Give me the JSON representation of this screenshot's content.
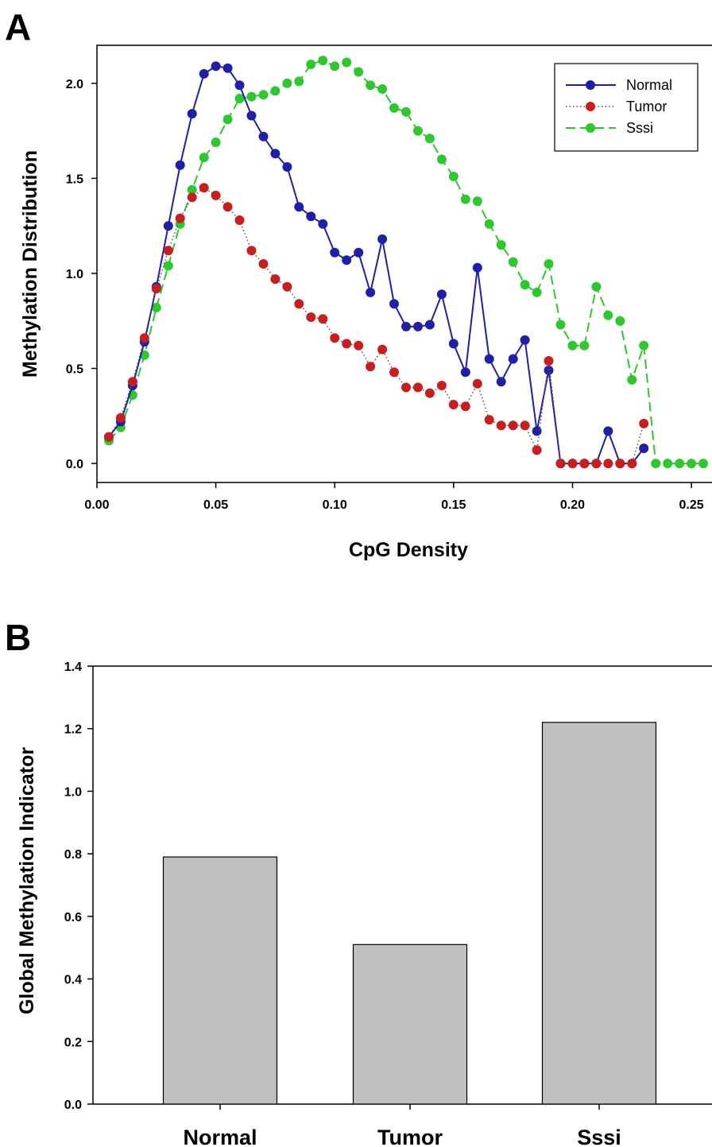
{
  "chart_data": [
    {
      "panel": "A",
      "type": "line",
      "xlabel": "CpG Density",
      "ylabel": "Methylation Distribution",
      "xlim": [
        0,
        0.26
      ],
      "ylim": [
        -0.1,
        2.2
      ],
      "xticks": [
        "0.00",
        "0.05",
        "0.10",
        "0.15",
        "0.20",
        "0.25"
      ],
      "yticks": [
        "0.0",
        "0.5",
        "1.0",
        "1.5",
        "2.0"
      ],
      "grid": false,
      "legend_position": "top-right",
      "x": [
        0.005,
        0.01,
        0.015,
        0.02,
        0.025,
        0.03,
        0.035,
        0.04,
        0.045,
        0.05,
        0.055,
        0.06,
        0.065,
        0.07,
        0.075,
        0.08,
        0.085,
        0.09,
        0.095,
        0.1,
        0.105,
        0.11,
        0.115,
        0.12,
        0.125,
        0.13,
        0.135,
        0.14,
        0.145,
        0.15,
        0.155,
        0.16,
        0.165,
        0.17,
        0.175,
        0.18,
        0.185,
        0.19,
        0.195,
        0.2,
        0.205,
        0.21,
        0.215,
        0.22,
        0.225,
        0.23,
        0.235,
        0.24,
        0.245,
        0.25,
        0.255
      ],
      "series": [
        {
          "name": "Normal",
          "color": "#1f1fa8",
          "line_style": "solid",
          "values": [
            0.14,
            0.22,
            0.41,
            0.64,
            0.93,
            1.25,
            1.57,
            1.84,
            2.05,
            2.09,
            2.08,
            1.99,
            1.83,
            1.72,
            1.63,
            1.56,
            1.35,
            1.3,
            1.26,
            1.11,
            1.07,
            1.11,
            0.9,
            1.18,
            0.84,
            0.72,
            0.72,
            0.73,
            0.89,
            0.63,
            0.48,
            1.03,
            0.55,
            0.43,
            0.55,
            0.65,
            0.17,
            0.49,
            0.0,
            0.0,
            0.0,
            0.0,
            0.17,
            0.0,
            0.0,
            0.08,
            null,
            null,
            null,
            null,
            null
          ]
        },
        {
          "name": "Tumor",
          "color": "#c81e1e",
          "line_style": "dotted",
          "values": [
            0.14,
            0.24,
            0.43,
            0.66,
            0.92,
            1.12,
            1.29,
            1.4,
            1.45,
            1.41,
            1.35,
            1.28,
            1.12,
            1.05,
            0.97,
            0.93,
            0.84,
            0.77,
            0.76,
            0.66,
            0.63,
            0.62,
            0.51,
            0.6,
            0.48,
            0.4,
            0.4,
            0.37,
            0.41,
            0.31,
            0.3,
            0.42,
            0.23,
            0.2,
            0.2,
            0.2,
            0.07,
            0.54,
            0.0,
            0.0,
            0.0,
            0.0,
            0.0,
            0.0,
            0.0,
            0.21,
            null,
            null,
            null,
            null,
            null
          ]
        },
        {
          "name": "Sssi",
          "color": "#2ec82e",
          "line_style": "dashed",
          "values": [
            0.12,
            0.19,
            0.36,
            0.57,
            0.82,
            1.04,
            1.26,
            1.44,
            1.61,
            1.69,
            1.81,
            1.92,
            1.93,
            1.94,
            1.96,
            2.0,
            2.01,
            2.1,
            2.12,
            2.09,
            2.11,
            2.06,
            1.99,
            1.97,
            1.87,
            1.85,
            1.75,
            1.71,
            1.6,
            1.51,
            1.39,
            1.38,
            1.26,
            1.15,
            1.06,
            0.94,
            0.9,
            1.05,
            0.73,
            0.62,
            0.62,
            0.93,
            0.78,
            0.75,
            0.44,
            0.62,
            0.0,
            0.0,
            0.0,
            0.0,
            0.0
          ]
        }
      ]
    },
    {
      "panel": "B",
      "type": "bar",
      "xlabel": "",
      "ylabel": "Global Methylation Indicator",
      "categories": [
        "Normal",
        "Tumor",
        "Sssi"
      ],
      "values": [
        0.79,
        0.51,
        1.22
      ],
      "ylim": [
        0,
        1.4
      ],
      "yticks": [
        "0.0",
        "0.2",
        "0.4",
        "0.6",
        "0.8",
        "1.0",
        "1.2",
        "1.4"
      ],
      "bar_color": "#c0c0c0",
      "grid": false
    }
  ]
}
